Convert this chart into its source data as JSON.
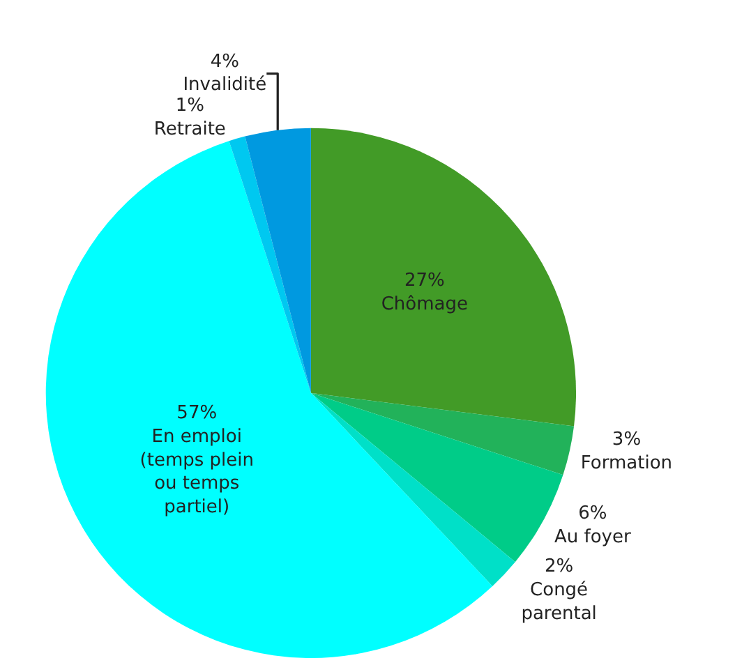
{
  "chart_data": {
    "type": "pie",
    "categories": [
      "Chômage",
      "Formation",
      "Au foyer",
      "Congé parental",
      "En emploi (temps plein ou temps partiel)",
      "Retraite",
      "Invalidité"
    ],
    "values": [
      27,
      3,
      6,
      2,
      57,
      1,
      4
    ],
    "colors": [
      "#429b27",
      "#22b25a",
      "#00cc88",
      "#00e0c8",
      "#00ffff",
      "#00c8f0",
      "#0099e0"
    ],
    "value_labels": [
      "27%",
      "3%",
      "6%",
      "2%",
      "57%",
      "1%",
      "4%"
    ]
  }
}
